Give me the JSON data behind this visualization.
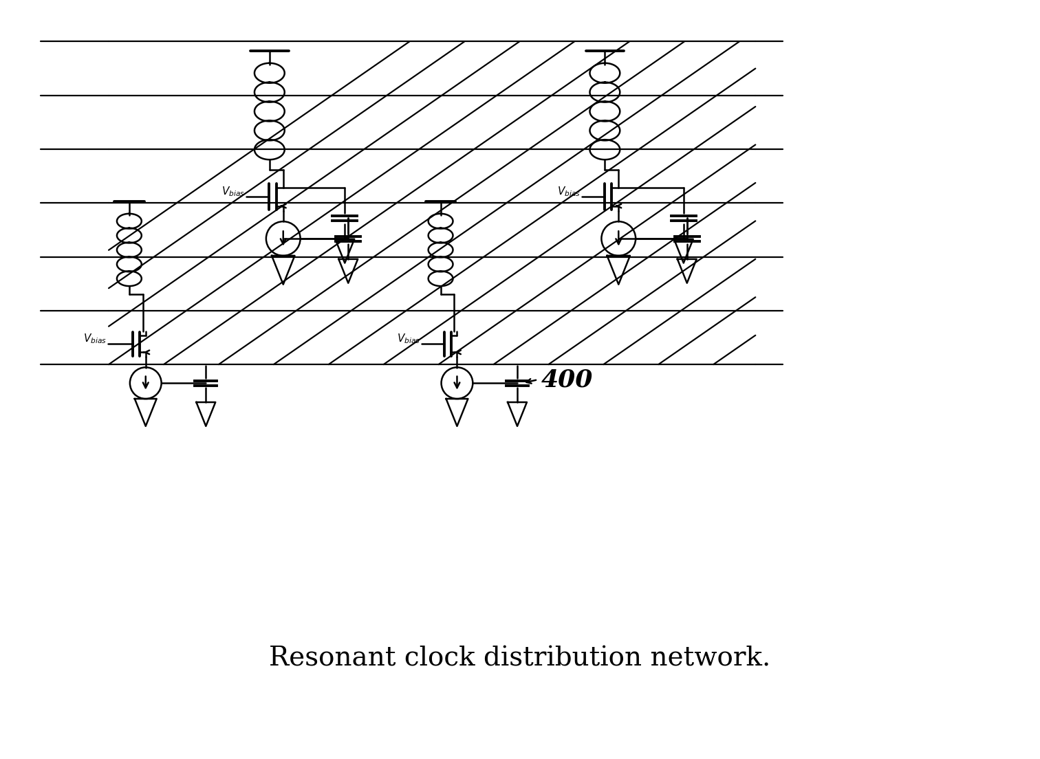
{
  "title": "Resonant clock distribution network.",
  "title_fontsize": 28,
  "bg_color": "#ffffff",
  "line_color": "#000000",
  "lw": 1.8,
  "fig_width": 15.12,
  "fig_height": 11.04,
  "annotation_400": "400"
}
